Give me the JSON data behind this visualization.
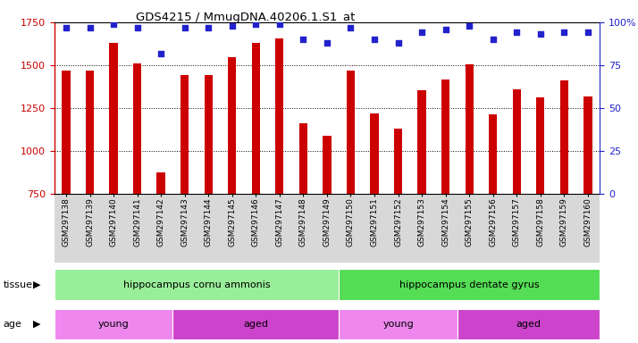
{
  "title": "GDS4215 / MmugDNA.40206.1.S1_at",
  "samples": [
    "GSM297138",
    "GSM297139",
    "GSM297140",
    "GSM297141",
    "GSM297142",
    "GSM297143",
    "GSM297144",
    "GSM297145",
    "GSM297146",
    "GSM297147",
    "GSM297148",
    "GSM297149",
    "GSM297150",
    "GSM297151",
    "GSM297152",
    "GSM297153",
    "GSM297154",
    "GSM297155",
    "GSM297156",
    "GSM297157",
    "GSM297158",
    "GSM297159",
    "GSM297160"
  ],
  "counts": [
    1470,
    1470,
    1630,
    1510,
    875,
    1440,
    1440,
    1545,
    1630,
    1655,
    1160,
    1090,
    1470,
    1220,
    1130,
    1355,
    1415,
    1505,
    1215,
    1360,
    1310,
    1410,
    1320
  ],
  "percentiles": [
    97,
    97,
    99,
    97,
    82,
    97,
    97,
    98,
    99,
    99,
    90,
    88,
    97,
    90,
    88,
    94,
    96,
    98,
    90,
    94,
    93,
    94,
    94
  ],
  "ylim_left": [
    750,
    1750
  ],
  "ylim_right": [
    0,
    100
  ],
  "yticks_left": [
    750,
    1000,
    1250,
    1500,
    1750
  ],
  "yticks_right": [
    0,
    25,
    50,
    75,
    100
  ],
  "bar_color": "#cc0000",
  "dot_color": "#2222cc",
  "grid_color": "#000000",
  "tissue_groups": [
    {
      "label": "hippocampus cornu ammonis",
      "start": 0,
      "end": 11,
      "color": "#99ee99"
    },
    {
      "label": "hippocampus dentate gyrus",
      "start": 12,
      "end": 22,
      "color": "#55dd55"
    }
  ],
  "age_groups": [
    {
      "label": "young",
      "start": 0,
      "end": 4,
      "color": "#ee88ee"
    },
    {
      "label": "aged",
      "start": 5,
      "end": 11,
      "color": "#cc44cc"
    },
    {
      "label": "young",
      "start": 12,
      "end": 16,
      "color": "#ee88ee"
    },
    {
      "label": "aged",
      "start": 17,
      "end": 22,
      "color": "#cc44cc"
    }
  ],
  "tissue_label": "tissue",
  "age_label": "age",
  "bg_color": "#ffffff",
  "plot_bg_color": "#ffffff",
  "xticklabel_bg": "#d8d8d8"
}
